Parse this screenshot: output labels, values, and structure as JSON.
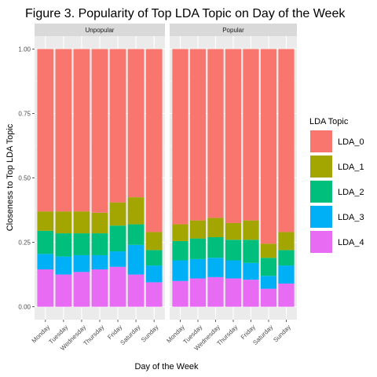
{
  "chart_data": {
    "type": "bar",
    "stacked": true,
    "title": "Figure 3. Popularity of Top LDA Topic on Day of the Week",
    "xlabel": "Day of the Week",
    "ylabel": "Closeness to Top LDA Topic",
    "ylim": [
      0,
      1
    ],
    "yticks": [
      "0.00",
      "0.25",
      "0.50",
      "0.75",
      "1.00"
    ],
    "ytick_values": [
      0,
      0.25,
      0.5,
      0.75,
      1.0
    ],
    "categories": [
      "Monday",
      "Tuesday",
      "Wednesday",
      "Thursday",
      "Friday",
      "Saturday",
      "Sunday"
    ],
    "legend": {
      "title": "LDA Topic",
      "position": "right"
    },
    "grid": true,
    "panels": [
      {
        "name": "Unpopular",
        "series": [
          {
            "name": "LDA_4",
            "color": "#E76BF3",
            "values": [
              0.145,
              0.125,
              0.135,
              0.145,
              0.155,
              0.125,
              0.095
            ]
          },
          {
            "name": "LDA_3",
            "color": "#00B0F6",
            "values": [
              0.06,
              0.07,
              0.065,
              0.055,
              0.06,
              0.115,
              0.065
            ]
          },
          {
            "name": "LDA_2",
            "color": "#00BF7D",
            "values": [
              0.09,
              0.09,
              0.085,
              0.085,
              0.1,
              0.08,
              0.06
            ]
          },
          {
            "name": "LDA_1",
            "color": "#A3A500",
            "values": [
              0.075,
              0.085,
              0.085,
              0.08,
              0.09,
              0.105,
              0.07
            ]
          },
          {
            "name": "LDA_0",
            "color": "#F8766D",
            "values": [
              0.63,
              0.63,
              0.63,
              0.635,
              0.595,
              0.575,
              0.71
            ]
          }
        ]
      },
      {
        "name": "Popular",
        "series": [
          {
            "name": "LDA_4",
            "color": "#E76BF3",
            "values": [
              0.1,
              0.11,
              0.115,
              0.11,
              0.105,
              0.07,
              0.09
            ]
          },
          {
            "name": "LDA_3",
            "color": "#00B0F6",
            "values": [
              0.08,
              0.075,
              0.075,
              0.07,
              0.065,
              0.05,
              0.07
            ]
          },
          {
            "name": "LDA_2",
            "color": "#00BF7D",
            "values": [
              0.075,
              0.08,
              0.08,
              0.08,
              0.09,
              0.07,
              0.06
            ]
          },
          {
            "name": "LDA_1",
            "color": "#A3A500",
            "values": [
              0.065,
              0.07,
              0.075,
              0.065,
              0.075,
              0.055,
              0.07
            ]
          },
          {
            "name": "LDA_0",
            "color": "#F8766D",
            "values": [
              0.68,
              0.665,
              0.655,
              0.675,
              0.665,
              0.755,
              0.71
            ]
          }
        ]
      }
    ],
    "legend_order": [
      "LDA_0",
      "LDA_1",
      "LDA_2",
      "LDA_3",
      "LDA_4"
    ]
  }
}
